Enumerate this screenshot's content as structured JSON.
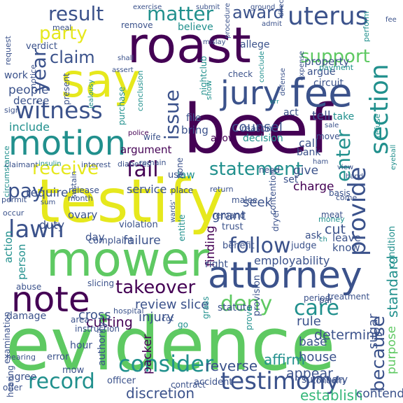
{
  "palette": {
    "purple": "#440154",
    "indigo": "#3b528b",
    "blue": "#31688e",
    "teal": "#21908d",
    "green": "#35b779",
    "lime": "#5ec962",
    "yellow": "#e6e81d"
  },
  "word_cloud": {
    "words": [
      {
        "text": "evidence"
      },
      {
        "text": "testify"
      },
      {
        "text": "beef"
      },
      {
        "text": "roast"
      },
      {
        "text": "mower"
      },
      {
        "text": "say"
      },
      {
        "text": "attorney"
      },
      {
        "text": "fee"
      },
      {
        "text": "jury"
      },
      {
        "text": "motion"
      },
      {
        "text": "note"
      },
      {
        "text": "testimony"
      },
      {
        "text": "section"
      },
      {
        "text": "provide"
      },
      {
        "text": "uterus"
      },
      {
        "text": "lawn"
      },
      {
        "text": "witness"
      },
      {
        "text": "record"
      },
      {
        "text": "consider"
      },
      {
        "text": "because"
      },
      {
        "text": "follow"
      },
      {
        "text": "takeover"
      },
      {
        "text": "result"
      },
      {
        "text": "matter"
      },
      {
        "text": "pay"
      },
      {
        "text": "fail"
      },
      {
        "text": "receive"
      },
      {
        "text": "deny"
      },
      {
        "text": "care"
      },
      {
        "text": "statement"
      },
      {
        "text": "enter"
      },
      {
        "text": "support"
      },
      {
        "text": "award"
      },
      {
        "text": "party"
      },
      {
        "text": "year"
      },
      {
        "text": "claim"
      },
      {
        "text": "issue"
      },
      {
        "text": "standard"
      },
      {
        "text": "purpose"
      },
      {
        "text": "establish"
      },
      {
        "text": "contend"
      },
      {
        "text": "discretion"
      },
      {
        "text": "reverse"
      },
      {
        "text": "affirm"
      },
      {
        "text": "appear"
      },
      {
        "text": "sugar"
      },
      {
        "text": "packer"
      },
      {
        "text": "cutting"
      },
      {
        "text": "review"
      },
      {
        "text": "slice"
      },
      {
        "text": "cross"
      },
      {
        "text": "injury"
      },
      {
        "text": "rule"
      },
      {
        "text": "determine"
      },
      {
        "text": "counsel"
      },
      {
        "text": "period"
      },
      {
        "text": "base"
      },
      {
        "text": "house"
      },
      {
        "text": "condition"
      },
      {
        "text": "employability"
      },
      {
        "text": "finding"
      },
      {
        "text": "grant"
      },
      {
        "text": "seek"
      },
      {
        "text": "charge"
      },
      {
        "text": "give"
      },
      {
        "text": "set"
      },
      {
        "text": "call"
      },
      {
        "text": "bank"
      },
      {
        "text": "cut"
      },
      {
        "text": "leave"
      },
      {
        "text": "know"
      },
      {
        "text": "ask"
      },
      {
        "text": "judge"
      },
      {
        "text": "meat"
      },
      {
        "text": "argument"
      },
      {
        "text": "include"
      },
      {
        "text": "people"
      },
      {
        "text": "decree"
      },
      {
        "text": "require"
      },
      {
        "text": "duty"
      },
      {
        "text": "failure"
      },
      {
        "text": "service"
      },
      {
        "text": "ovary"
      },
      {
        "text": "allow"
      },
      {
        "text": "decision"
      },
      {
        "text": "reason"
      },
      {
        "text": "tell"
      },
      {
        "text": "take"
      },
      {
        "text": "act"
      },
      {
        "text": "file"
      },
      {
        "text": "bring"
      },
      {
        "text": "nightclub"
      },
      {
        "text": "circuit"
      },
      {
        "text": "argue"
      },
      {
        "text": "property"
      },
      {
        "text": "allege"
      },
      {
        "text": "believe"
      },
      {
        "text": "remove"
      },
      {
        "text": "verdict"
      },
      {
        "text": "work"
      },
      {
        "text": "law"
      },
      {
        "text": "use"
      },
      {
        "text": "day"
      },
      {
        "text": "hour"
      },
      {
        "text": "agree"
      },
      {
        "text": "mow"
      },
      {
        "text": "error"
      },
      {
        "text": "damage"
      },
      {
        "text": "action"
      },
      {
        "text": "person"
      },
      {
        "text": "right"
      },
      {
        "text": "benefit"
      },
      {
        "text": "statute"
      },
      {
        "text": "summary"
      },
      {
        "text": "grass"
      },
      {
        "text": "provision"
      },
      {
        "text": "prove"
      },
      {
        "text": "authority"
      },
      {
        "text": "hearing"
      },
      {
        "text": "examination"
      },
      {
        "text": "offer"
      },
      {
        "text": "officer"
      },
      {
        "text": "contract"
      },
      {
        "text": "accident"
      },
      {
        "text": "concern"
      },
      {
        "text": "treatment"
      },
      {
        "text": "abuse"
      },
      {
        "text": "slicing"
      },
      {
        "text": "hospital"
      },
      {
        "text": "instruction"
      },
      {
        "text": "area"
      },
      {
        "text": "complaint"
      },
      {
        "text": "violation"
      },
      {
        "text": "entitle"
      },
      {
        "text": "remand"
      },
      {
        "text": "trust"
      },
      {
        "text": "dryer"
      },
      {
        "text": "contention"
      },
      {
        "text": "money"
      },
      {
        "text": "basis"
      },
      {
        "text": "come"
      },
      {
        "text": "hand"
      },
      {
        "text": "view"
      },
      {
        "text": "move"
      },
      {
        "text": "ham"
      },
      {
        "text": "need"
      },
      {
        "text": "sale"
      },
      {
        "text": "refuse"
      },
      {
        "text": "eyeball"
      },
      {
        "text": "malee"
      },
      {
        "text": "return"
      },
      {
        "text": "place"
      },
      {
        "text": "hone"
      },
      {
        "text": "wife"
      },
      {
        "text": "remain"
      },
      {
        "text": "police"
      },
      {
        "text": "purchase"
      },
      {
        "text": "conclusion"
      },
      {
        "text": "claimant"
      },
      {
        "text": "insulin"
      },
      {
        "text": "interest"
      },
      {
        "text": "diabetes"
      },
      {
        "text": "release"
      },
      {
        "text": "month"
      },
      {
        "text": "sustain"
      },
      {
        "text": "permit"
      },
      {
        "text": "sum"
      },
      {
        "text": "occur"
      },
      {
        "text": "circumstance"
      },
      {
        "text": "sign"
      },
      {
        "text": "jealousy"
      },
      {
        "text": "present"
      },
      {
        "text": "notice"
      },
      {
        "text": "request"
      },
      {
        "text": "meal"
      },
      {
        "text": "exercise"
      },
      {
        "text": "submit"
      },
      {
        "text": "ground"
      },
      {
        "text": "admit"
      },
      {
        "text": "direct"
      },
      {
        "text": "perform"
      },
      {
        "text": "payment"
      },
      {
        "text": "expense"
      },
      {
        "text": "defense"
      },
      {
        "text": "conclude"
      },
      {
        "text": "procedure"
      },
      {
        "text": "mislay"
      },
      {
        "text": "shall"
      },
      {
        "text": "assert"
      },
      {
        "text": "check"
      },
      {
        "text": "show"
      },
      {
        "text": "err"
      },
      {
        "text": "ch"
      },
      {
        "text": "par"
      },
      {
        "text": "wards'"
      },
      {
        "text": "cot"
      },
      {
        "text": "go"
      },
      {
        "text": "fee"
      },
      {
        "text": "hearing"
      }
    ]
  }
}
